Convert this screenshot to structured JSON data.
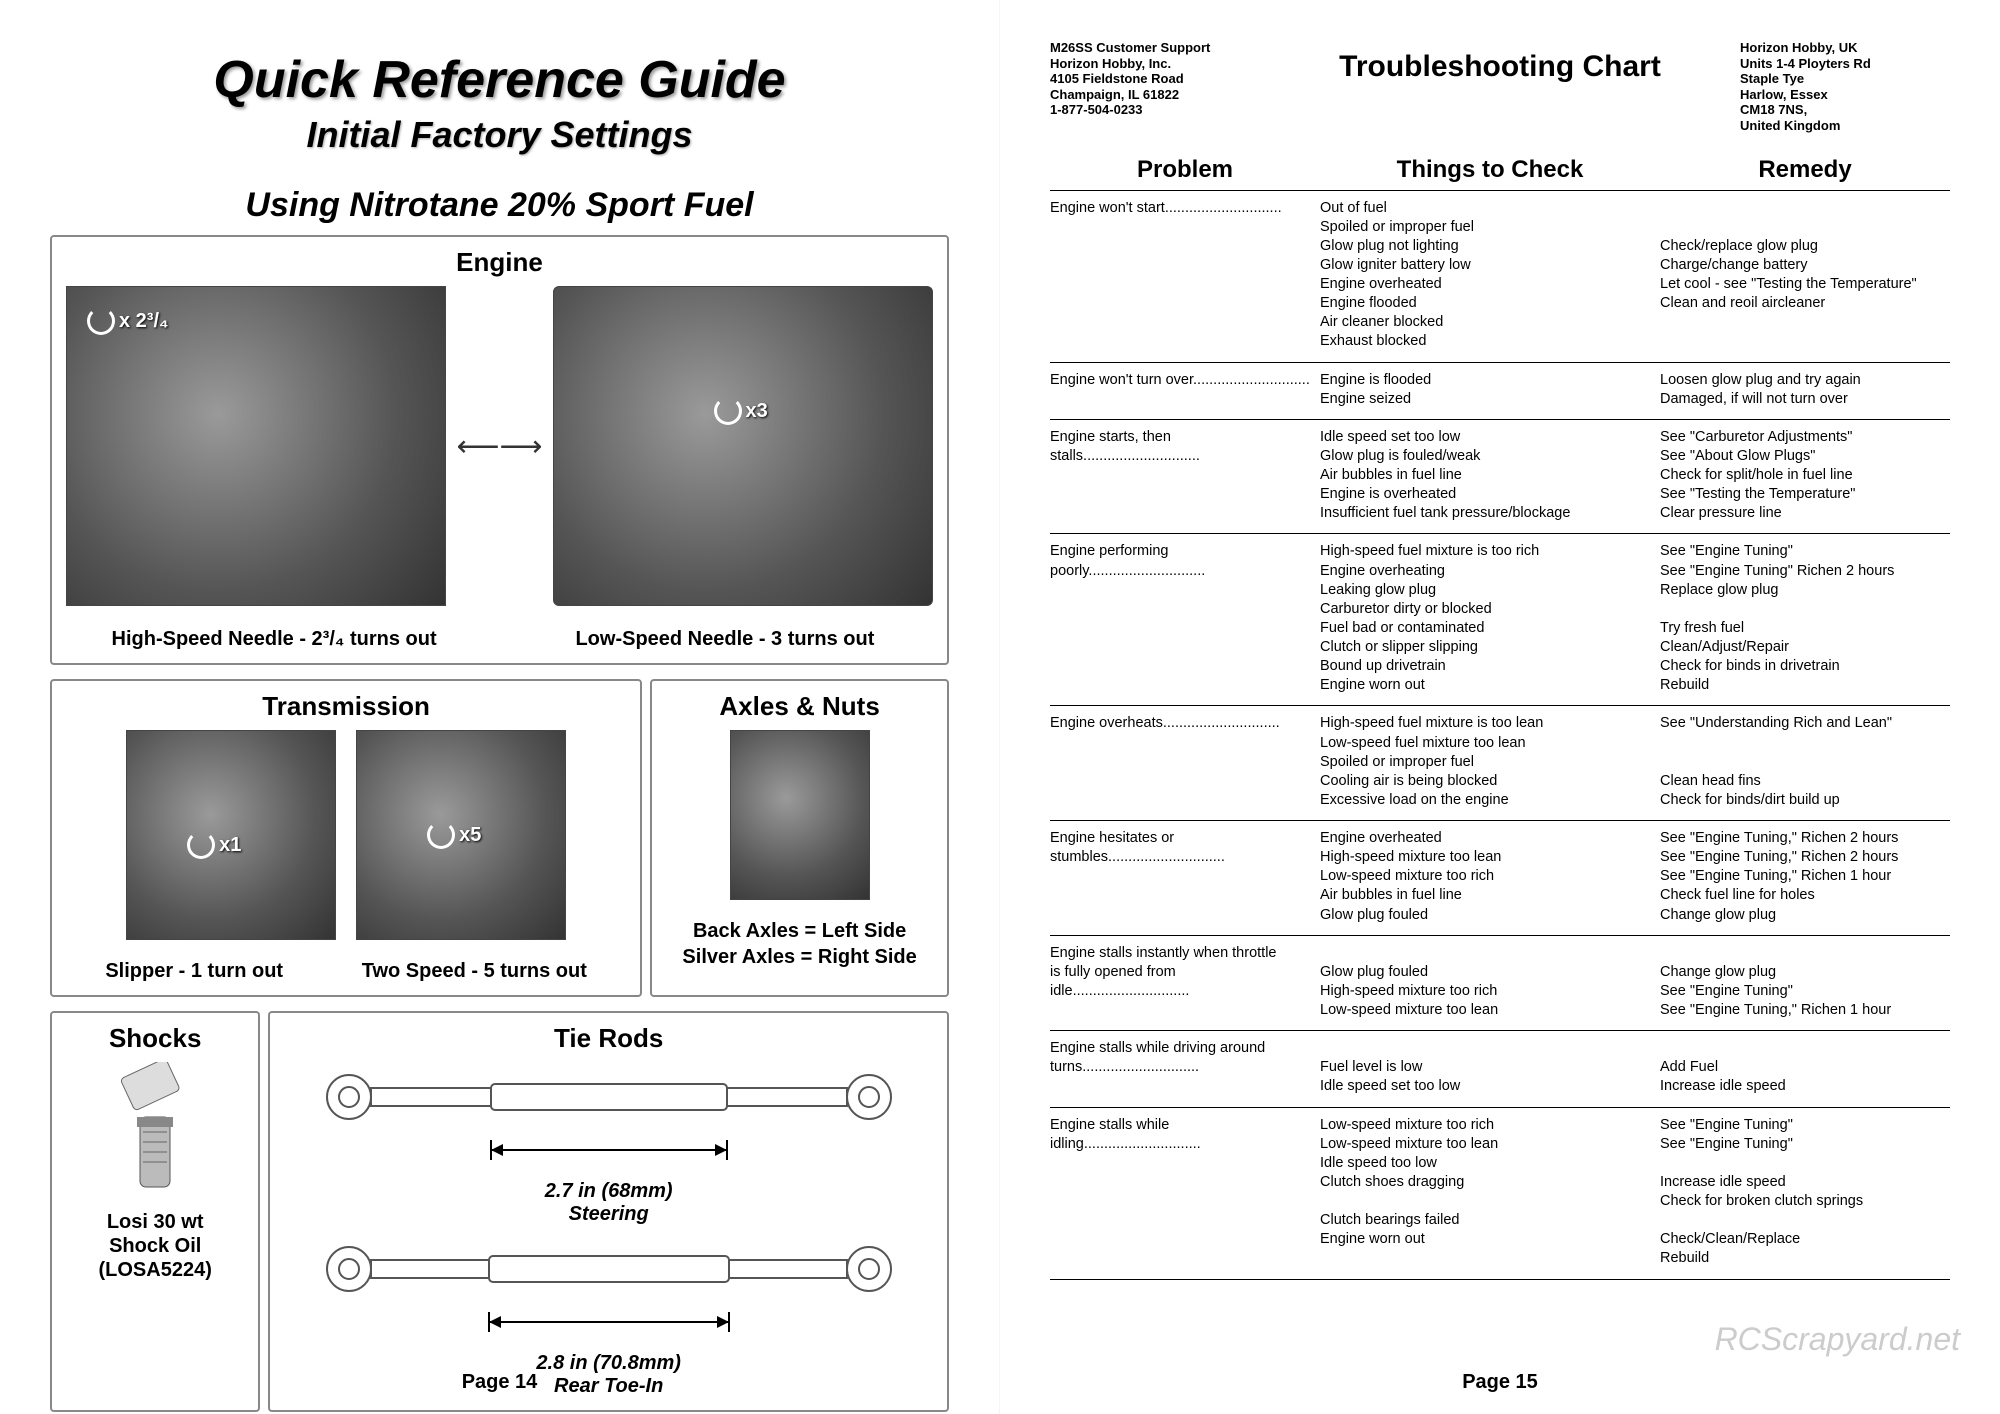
{
  "left": {
    "title_main": "Quick Reference Guide",
    "title_sub": "Initial Factory Settings",
    "title_fuel": "Using Nitrotane 20% Sport Fuel",
    "engine": {
      "heading": "Engine",
      "left_overlay": "x 2³/₄",
      "right_overlay": "x3",
      "caption_left": "High-Speed Needle - 2³/₄ turns out",
      "caption_right": "Low-Speed Needle - 3 turns out"
    },
    "transmission": {
      "heading": "Transmission",
      "left_overlay": "x1",
      "right_overlay": "x5",
      "caption_left": "Slipper - 1 turn out",
      "caption_right": "Two Speed - 5 turns out"
    },
    "axles": {
      "heading": "Axles & Nuts",
      "line1": "Back Axles = Left Side",
      "line2": "Silver Axles = Right Side"
    },
    "shocks": {
      "heading": "Shocks",
      "line1": "Losi 30 wt",
      "line2": "Shock Oil",
      "line3": "(LOSA5224)"
    },
    "tierods": {
      "heading": "Tie Rods",
      "steering_dim": "2.7 in (68mm)",
      "steering_label": "Steering",
      "rear_dim": "2.8 in (70.8mm)",
      "rear_label": "Rear Toe-In"
    },
    "page_num": "Page 14"
  },
  "right": {
    "addr_us": "M26SS Customer Support\nHorizon Hobby, Inc.\n4105 Fieldstone Road\nChampaign, IL 61822\n1-877-504-0233",
    "chart_title": "Troubleshooting Chart",
    "addr_uk": "Horizon Hobby, UK\nUnits 1-4 Ployters Rd\nStaple Tye\nHarlow, Essex\nCM18 7NS,\nUnited Kingdom",
    "h_problem": "Problem",
    "h_check": "Things to Check",
    "h_remedy": "Remedy",
    "rows": [
      {
        "problem": "Engine won't start",
        "check": "Out of fuel\nSpoiled or improper fuel\nGlow plug not lighting\nGlow igniter battery low\nEngine overheated\nEngine flooded\nAir cleaner blocked\nExhaust blocked",
        "remedy": "\n\nCheck/replace glow plug\nCharge/change battery\nLet cool - see \"Testing the Temperature\"\nClean and reoil aircleaner"
      },
      {
        "problem": "Engine won't turn over",
        "check": "Engine is flooded\nEngine seized",
        "remedy": "Loosen glow plug and try again\nDamaged, if will not turn over"
      },
      {
        "problem": "Engine starts, then stalls",
        "check": "Idle speed set too low\nGlow plug is fouled/weak\nAir bubbles in fuel line\nEngine is overheated\nInsufficient fuel tank pressure/blockage",
        "remedy": "See \"Carburetor Adjustments\"\nSee \"About Glow Plugs\"\nCheck for split/hole in fuel line\nSee \"Testing the Temperature\"\nClear pressure line"
      },
      {
        "problem": "Engine performing poorly",
        "check": "High-speed fuel mixture is too rich\nEngine overheating\nLeaking glow plug\nCarburetor dirty or blocked\nFuel bad or contaminated\nClutch or slipper slipping\nBound up drivetrain\nEngine worn out",
        "remedy": "See \"Engine Tuning\"\nSee \"Engine Tuning\" Richen 2 hours\nReplace glow plug\n\nTry fresh fuel\nClean/Adjust/Repair\nCheck for binds in drivetrain\nRebuild"
      },
      {
        "problem": "Engine overheats",
        "check": "High-speed fuel mixture is too lean\nLow-speed fuel mixture too lean\nSpoiled or improper fuel\nCooling air is being blocked\nExcessive load on the engine",
        "remedy": "See \"Understanding Rich and Lean\"\n\n\nClean head fins\nCheck for binds/dirt build up"
      },
      {
        "problem": "Engine hesitates or stumbles",
        "check": "Engine overheated\nHigh-speed mixture too lean\nLow-speed mixture too rich\nAir bubbles in fuel line\nGlow plug fouled",
        "remedy": "See \"Engine Tuning,\" Richen 2 hours\nSee \"Engine Tuning,\" Richen 2 hours\nSee \"Engine Tuning,\" Richen 1 hour\nCheck fuel line for holes\nChange glow plug"
      },
      {
        "problem": "Engine stalls instantly when throttle\nis fully opened from idle",
        "check": "\nGlow plug fouled\nHigh-speed mixture too rich\nLow-speed mixture too lean",
        "remedy": "\nChange glow plug\nSee \"Engine Tuning\"\nSee \"Engine Tuning,\" Richen 1 hour"
      },
      {
        "problem": "Engine stalls while driving around\nturns",
        "check": "\nFuel level is low\nIdle speed set too low",
        "remedy": "\nAdd Fuel\nIncrease idle speed"
      },
      {
        "problem": "Engine stalls while idling",
        "check": "Low-speed mixture too rich\nLow-speed mixture too lean\nIdle speed too low\nClutch shoes dragging\n\nClutch bearings failed\nEngine worn out",
        "remedy": "See \"Engine Tuning\"\nSee \"Engine Tuning\"\n\nIncrease idle speed\nCheck for broken clutch springs\n\nCheck/Clean/Replace\nRebuild"
      }
    ],
    "page_num": "Page 15",
    "watermark": "RCScrapyard.net"
  }
}
